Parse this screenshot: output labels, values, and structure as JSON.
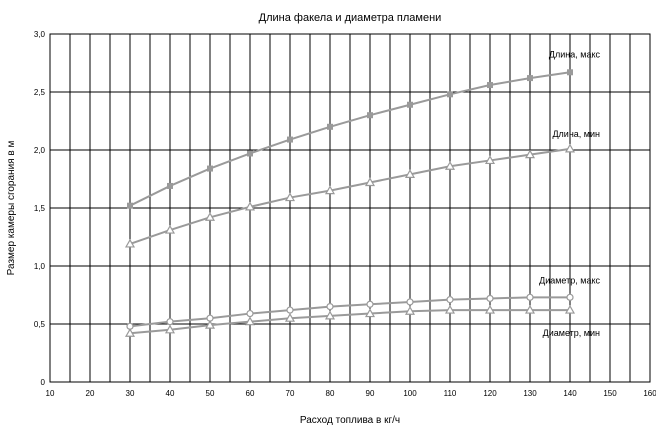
{
  "chart_data": {
    "type": "line",
    "title": "Длина факела и диаметра пламени",
    "xlabel": "Расход топлива в кг/ч",
    "ylabel": "Размер камеры сгорания в м",
    "xlim": [
      10,
      160
    ],
    "ylim": [
      0,
      3.0
    ],
    "x_ticks": [
      "10",
      "20",
      "30",
      "40",
      "50",
      "60",
      "70",
      "80",
      "90",
      "100",
      "110",
      "120",
      "130",
      "140",
      "150",
      "160"
    ],
    "y_ticks": [
      "0",
      "0,5",
      "1,0",
      "1,5",
      "2,0",
      "2,5",
      "3,0"
    ],
    "grid": true,
    "x": [
      30,
      40,
      50,
      60,
      70,
      80,
      90,
      100,
      110,
      120,
      130,
      140
    ],
    "series": [
      {
        "name": "Длина, макс",
        "marker": "square",
        "color": "#9a9a9a",
        "values": [
          1.52,
          1.69,
          1.84,
          1.97,
          2.09,
          2.2,
          2.3,
          2.39,
          2.48,
          2.56,
          2.62,
          2.67
        ]
      },
      {
        "name": "Длина, мин",
        "marker": "triangle",
        "color": "#9a9a9a",
        "values": [
          1.19,
          1.31,
          1.42,
          1.51,
          1.59,
          1.65,
          1.72,
          1.79,
          1.86,
          1.91,
          1.96,
          2.01
        ]
      },
      {
        "name": "Диаметр, макс",
        "marker": "circle",
        "color": "#9a9a9a",
        "values": [
          0.48,
          0.52,
          0.55,
          0.59,
          0.62,
          0.65,
          0.67,
          0.69,
          0.71,
          0.72,
          0.73,
          0.73
        ]
      },
      {
        "name": "Диаметр, мин",
        "marker": "triangle",
        "color": "#9a9a9a",
        "values": [
          0.42,
          0.45,
          0.49,
          0.52,
          0.55,
          0.57,
          0.59,
          0.61,
          0.62,
          0.62,
          0.62,
          0.62
        ]
      }
    ]
  }
}
